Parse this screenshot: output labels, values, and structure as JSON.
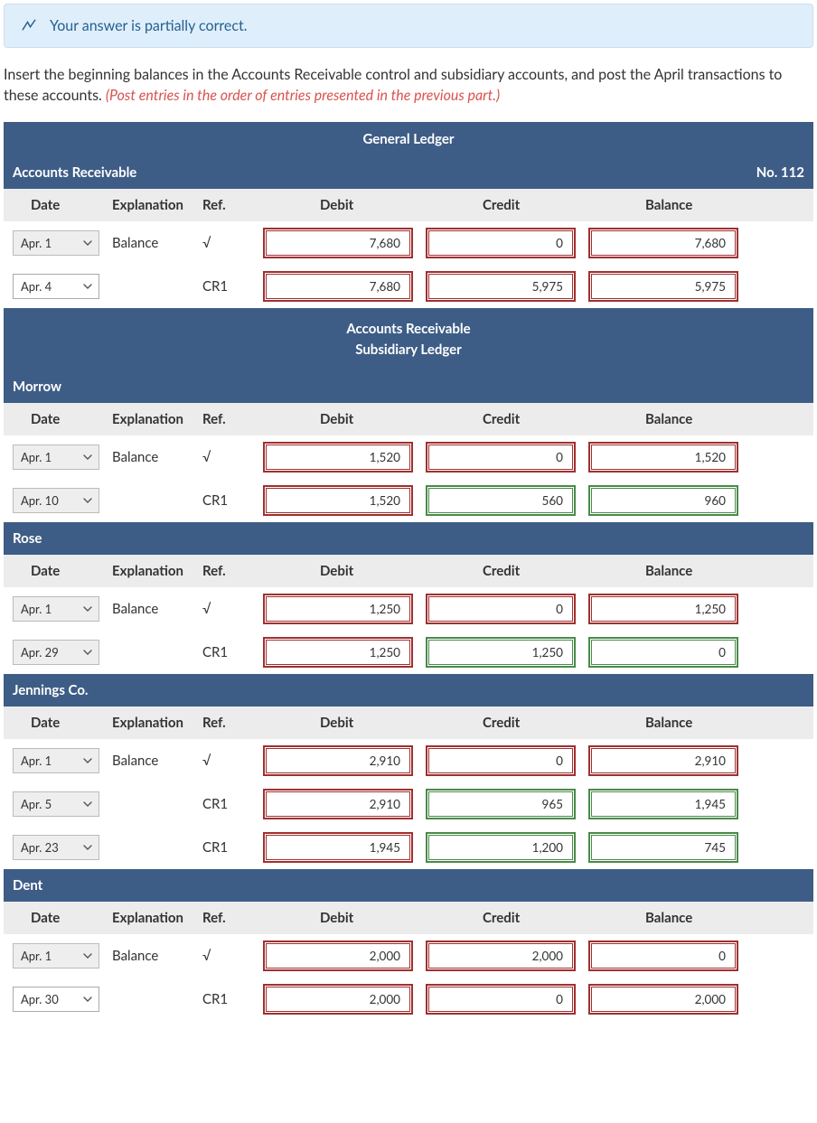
{
  "alert": {
    "text": "Your answer is partially correct.",
    "bg": "#dfeefb",
    "border": "#c9dff0",
    "text_color": "#256190",
    "icon_color": "#256190"
  },
  "instructions": {
    "line1": "Insert the beginning balances in the Accounts Receivable control and subsidiary accounts, and post the April transactions to these accounts. ",
    "line2_red": "(Post entries in the order of entries presented in the previous part.)"
  },
  "headers": {
    "date": "Date",
    "explanation": "Explanation",
    "ref": "Ref.",
    "debit": "Debit",
    "credit": "Credit",
    "balance": "Balance"
  },
  "titles": {
    "general_ledger": "General Ledger",
    "subsidiary_line1": "Accounts Receivable",
    "subsidiary_line2": "Subsidiary Ledger"
  },
  "sections": [
    {
      "labelLeft": "Accounts Receivable",
      "labelRight": "No. 112",
      "rows": [
        {
          "date": "Apr. 1",
          "dateGrey": true,
          "expl": "Balance",
          "ref": "√",
          "debit": {
            "v": "7,680",
            "s": "red"
          },
          "credit": {
            "v": "0",
            "s": "red"
          },
          "balance": {
            "v": "7,680",
            "s": "red"
          }
        },
        {
          "date": "Apr. 4",
          "dateGrey": false,
          "expl": "",
          "ref": "CR1",
          "debit": {
            "v": "7,680",
            "s": "red"
          },
          "credit": {
            "v": "5,975",
            "s": "red"
          },
          "balance": {
            "v": "5,975",
            "s": "red"
          }
        }
      ]
    },
    {
      "labelLeft": "Morrow",
      "rows": [
        {
          "date": "Apr. 1",
          "dateGrey": true,
          "expl": "Balance",
          "ref": "√",
          "debit": {
            "v": "1,520",
            "s": "red"
          },
          "credit": {
            "v": "0",
            "s": "red"
          },
          "balance": {
            "v": "1,520",
            "s": "red"
          }
        },
        {
          "date": "Apr. 10",
          "dateGrey": true,
          "expl": "",
          "ref": "CR1",
          "debit": {
            "v": "1,520",
            "s": "red"
          },
          "credit": {
            "v": "560",
            "s": "green"
          },
          "balance": {
            "v": "960",
            "s": "green"
          }
        }
      ]
    },
    {
      "labelLeft": "Rose",
      "rows": [
        {
          "date": "Apr. 1",
          "dateGrey": true,
          "expl": "Balance",
          "ref": "√",
          "debit": {
            "v": "1,250",
            "s": "red"
          },
          "credit": {
            "v": "0",
            "s": "red"
          },
          "balance": {
            "v": "1,250",
            "s": "red"
          }
        },
        {
          "date": "Apr. 29",
          "dateGrey": true,
          "expl": "",
          "ref": "CR1",
          "debit": {
            "v": "1,250",
            "s": "red"
          },
          "credit": {
            "v": "1,250",
            "s": "green"
          },
          "balance": {
            "v": "0",
            "s": "green"
          }
        }
      ]
    },
    {
      "labelLeft": "Jennings Co.",
      "rows": [
        {
          "date": "Apr. 1",
          "dateGrey": true,
          "expl": "Balance",
          "ref": "√",
          "debit": {
            "v": "2,910",
            "s": "red"
          },
          "credit": {
            "v": "0",
            "s": "red"
          },
          "balance": {
            "v": "2,910",
            "s": "red"
          }
        },
        {
          "date": "Apr. 5",
          "dateGrey": true,
          "expl": "",
          "ref": "CR1",
          "debit": {
            "v": "2,910",
            "s": "red"
          },
          "credit": {
            "v": "965",
            "s": "green"
          },
          "balance": {
            "v": "1,945",
            "s": "green"
          }
        },
        {
          "date": "Apr. 23",
          "dateGrey": true,
          "expl": "",
          "ref": "CR1",
          "debit": {
            "v": "1,945",
            "s": "red"
          },
          "credit": {
            "v": "1,200",
            "s": "green"
          },
          "balance": {
            "v": "745",
            "s": "green"
          }
        }
      ]
    },
    {
      "labelLeft": "Dent",
      "rows": [
        {
          "date": "Apr. 1",
          "dateGrey": true,
          "expl": "Balance",
          "ref": "√",
          "debit": {
            "v": "2,000",
            "s": "red"
          },
          "credit": {
            "v": "2,000",
            "s": "red"
          },
          "balance": {
            "v": "0",
            "s": "red"
          }
        },
        {
          "date": "Apr. 30",
          "dateGrey": false,
          "expl": "",
          "ref": "CR1",
          "debit": {
            "v": "2,000",
            "s": "red"
          },
          "credit": {
            "v": "0",
            "s": "red"
          },
          "balance": {
            "v": "2,000",
            "s": "red"
          }
        }
      ]
    }
  ]
}
